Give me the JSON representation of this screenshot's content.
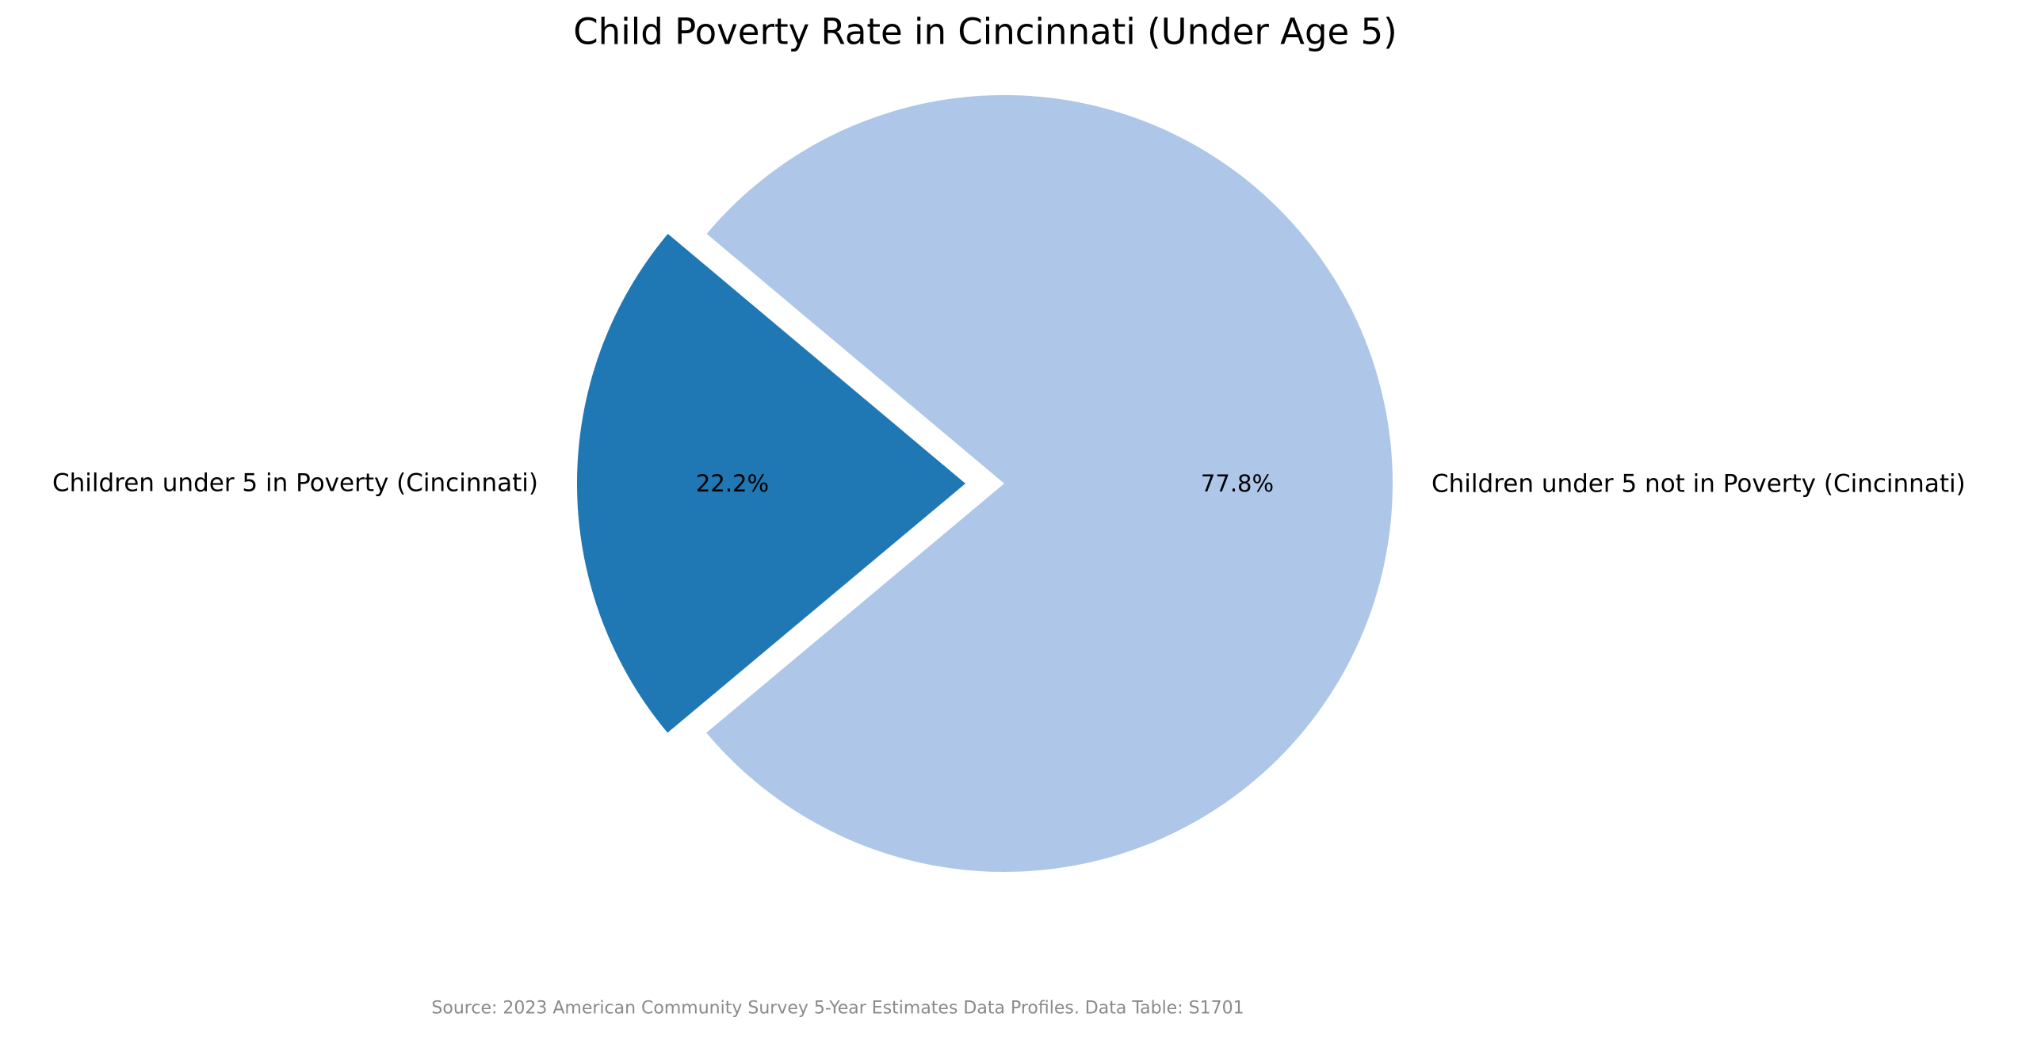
{
  "chart_data": {
    "type": "pie",
    "title": "Child Poverty Rate in Cincinnati (Under Age 5)",
    "slices": [
      {
        "label": "Children under 5 in Poverty (Cincinnati)",
        "value": 22.2,
        "pct_label": "22.2%",
        "color": "#1f77b4",
        "explode": 0.1
      },
      {
        "label": "Children under 5 not in Poverty (Cincinnati)",
        "value": 77.8,
        "pct_label": "77.8%",
        "color": "#aec7e8",
        "explode": 0
      }
    ],
    "startangle": 140,
    "autopct_distance": 0.6,
    "label_distance": 1.1,
    "legend_position": "none",
    "background_color": "#ffffff",
    "text_color": "#000000",
    "source_color": "#8a8a8a",
    "source_note": "Source: 2023 American Community Survey 5-Year Estimates Data Profiles. Data Table: S1701"
  }
}
